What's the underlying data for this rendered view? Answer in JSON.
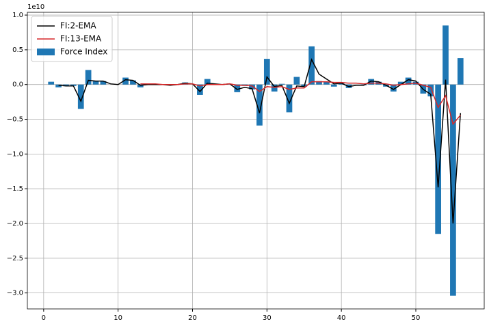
{
  "chart_data": {
    "type": "bar",
    "y_offset_label": "1e10",
    "x": [
      1,
      2,
      3,
      4,
      5,
      6,
      7,
      8,
      9,
      10,
      11,
      12,
      13,
      14,
      15,
      16,
      17,
      18,
      19,
      20,
      21,
      22,
      23,
      24,
      25,
      26,
      27,
      28,
      29,
      30,
      31,
      32,
      33,
      34,
      35,
      36,
      37,
      38,
      39,
      40,
      41,
      42,
      43,
      44,
      45,
      46,
      47,
      48,
      49,
      50,
      51,
      52,
      53,
      54,
      55,
      56
    ],
    "series": [
      {
        "name": "FI:2-EMA",
        "type": "line",
        "color": "#000000",
        "values": [
          null,
          -0.01,
          -0.02,
          -0.02,
          -0.24,
          0.06,
          0.05,
          0.05,
          0.01,
          0.0,
          0.07,
          0.06,
          -0.01,
          0.0,
          0.0,
          0.0,
          -0.01,
          0.0,
          0.02,
          0.01,
          -0.1,
          0.02,
          0.01,
          0.0,
          0.01,
          -0.07,
          -0.04,
          -0.06,
          -0.41,
          0.11,
          -0.03,
          -0.01,
          -0.27,
          -0.02,
          -0.03,
          0.36,
          0.15,
          0.08,
          0.01,
          0.02,
          -0.03,
          -0.01,
          -0.01,
          0.05,
          0.04,
          -0.01,
          -0.07,
          0.0,
          0.07,
          0.05,
          -0.07,
          -0.14,
          -1.48,
          0.07,
          -2.0,
          -0.41
        ]
      },
      {
        "name": "FI:13-EMA",
        "type": "line",
        "color": "#d62728",
        "values": [
          null,
          null,
          null,
          null,
          null,
          null,
          null,
          null,
          null,
          null,
          null,
          null,
          0.01,
          0.01,
          0.01,
          0.0,
          0.0,
          0.0,
          0.01,
          0.01,
          -0.02,
          0.0,
          0.0,
          0.0,
          0.01,
          -0.01,
          -0.01,
          -0.02,
          -0.1,
          -0.03,
          -0.04,
          -0.03,
          -0.07,
          -0.05,
          -0.05,
          0.04,
          0.04,
          0.04,
          0.03,
          0.03,
          0.02,
          0.02,
          0.01,
          0.02,
          0.02,
          0.01,
          -0.01,
          0.0,
          0.01,
          0.02,
          -0.01,
          -0.04,
          -0.33,
          -0.16,
          -0.57,
          -0.44
        ]
      },
      {
        "name": "Force Index",
        "type": "bar",
        "color": "#1f77b4",
        "values": [
          0.04,
          -0.04,
          -0.02,
          -0.02,
          -0.35,
          0.21,
          0.05,
          0.05,
          0.0,
          0.0,
          0.1,
          0.06,
          -0.04,
          0.0,
          0.0,
          0.0,
          -0.01,
          0.0,
          0.03,
          0.0,
          -0.15,
          0.08,
          0.0,
          0.0,
          0.01,
          -0.11,
          -0.02,
          -0.07,
          -0.59,
          0.37,
          -0.1,
          0.01,
          -0.4,
          0.11,
          -0.03,
          0.55,
          0.05,
          0.04,
          -0.03,
          0.02,
          -0.05,
          0.0,
          -0.01,
          0.08,
          0.04,
          -0.03,
          -0.1,
          0.04,
          0.1,
          0.04,
          -0.13,
          -0.17,
          -2.15,
          0.85,
          -3.04,
          0.38
        ]
      }
    ],
    "xlim": [
      -2.19,
      59.19
    ],
    "xticks": [
      0,
      10,
      20,
      30,
      40,
      50
    ],
    "ylim": [
      -3.23,
      1.04
    ],
    "yticks": [
      {
        "value": 1,
        "label": "1.0"
      },
      {
        "value": 0.5,
        "label": "0.5"
      },
      {
        "value": 0,
        "label": "0.0"
      },
      {
        "value": -0.5,
        "label": "−0.5"
      },
      {
        "value": -1,
        "label": "−1.0"
      },
      {
        "value": -1.5,
        "label": "−1.5"
      },
      {
        "value": -2,
        "label": "−2.0"
      },
      {
        "value": -2.5,
        "label": "−2.5"
      },
      {
        "value": -3,
        "label": "−3.0"
      }
    ],
    "grid": true,
    "legend": "upper-left"
  }
}
